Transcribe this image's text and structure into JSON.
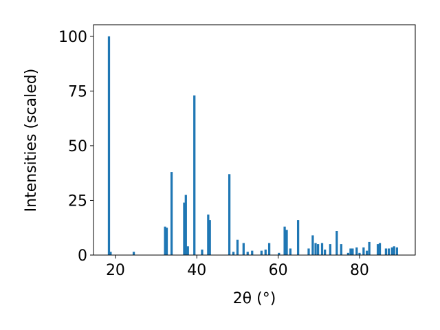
{
  "chart_data": {
    "type": "bar",
    "xlabel": "2θ (°)",
    "ylabel": "Intensities (scaled)",
    "color": "#1f77b4",
    "x": [
      18.4,
      18.8,
      24.5,
      32.2,
      32.6,
      33.8,
      36.9,
      37.3,
      37.8,
      39.4,
      41.3,
      42.8,
      43.2,
      48.0,
      49.0,
      50.0,
      51.5,
      52.5,
      53.6,
      55.9,
      56.9,
      57.8,
      60.2,
      61.6,
      62.1,
      63.0,
      64.9,
      67.5,
      68.5,
      69.2,
      69.8,
      70.8,
      71.5,
      72.8,
      74.4,
      75.5,
      77.2,
      77.8,
      78.3,
      79.3,
      80.0,
      81.0,
      81.8,
      82.4,
      84.5,
      85.0,
      86.5,
      87.2,
      88.0,
      88.5,
      89.2
    ],
    "values": [
      100,
      1.5,
      1.5,
      13,
      12.5,
      38,
      24,
      27.5,
      4,
      73,
      2.5,
      18.5,
      16,
      37,
      1.5,
      7,
      5.5,
      1.5,
      2,
      2,
      2.5,
      5.5,
      1,
      13,
      11.5,
      3,
      16,
      3,
      9,
      5.5,
      5,
      5.5,
      2.5,
      5,
      11,
      5,
      1,
      3,
      3,
      3.5,
      1,
      3.5,
      2,
      6,
      5,
      5.5,
      3,
      3,
      3.5,
      4,
      3.5
    ],
    "xlim": [
      14.6,
      93.7
    ],
    "ylim": [
      0,
      105.3
    ],
    "xticks": [
      20,
      40,
      60,
      80
    ],
    "yticks": [
      0,
      25,
      50,
      75,
      100
    ],
    "grid": false
  }
}
